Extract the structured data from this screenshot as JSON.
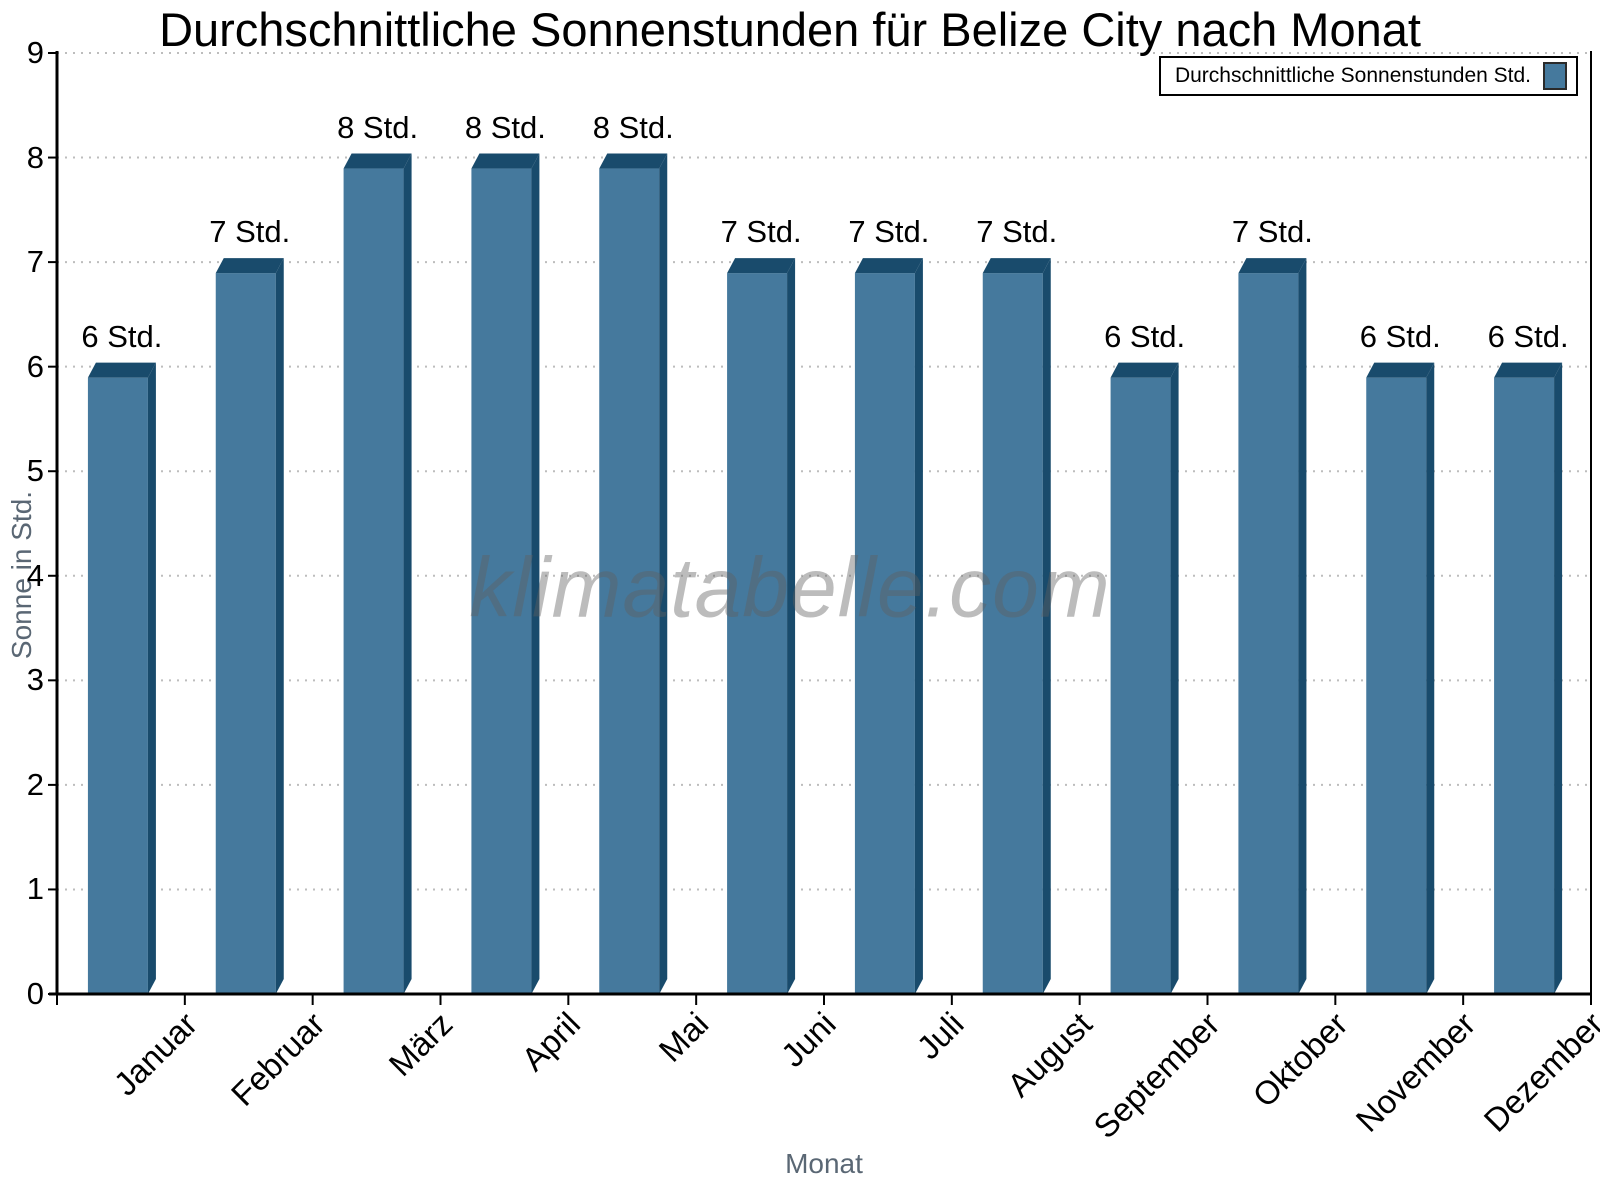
{
  "title": "Durchschnittliche Sonnenstunden für Belize City nach Monat",
  "watermark": "klimatabelle.com",
  "legend": {
    "label": "Durchschnittliche Sonnenstunden Std."
  },
  "chart_data": {
    "type": "bar",
    "title": "Durchschnittliche Sonnenstunden für Belize City nach Monat",
    "xlabel": "Monat",
    "ylabel": "Sonne in Std.",
    "categories": [
      "Januar",
      "Februar",
      "März",
      "April",
      "Mai",
      "Juni",
      "Juli",
      "August",
      "September",
      "Oktober",
      "November",
      "Dezember"
    ],
    "values": [
      6,
      7,
      8,
      8,
      8,
      7,
      7,
      7,
      6,
      7,
      6,
      6
    ],
    "value_labels": [
      "6 Std.",
      "7 Std.",
      "8 Std.",
      "8 Std.",
      "8 Std.",
      "7 Std.",
      "7 Std.",
      "7 Std.",
      "6 Std.",
      "7 Std.",
      "6 Std.",
      "6 Std."
    ],
    "unit": "Std.",
    "ylim": [
      0,
      9
    ],
    "yticks": [
      0,
      1,
      2,
      3,
      4,
      5,
      6,
      7,
      8,
      9
    ],
    "grid": "horizontal-dotted",
    "legend_position": "top-right",
    "legend_label": "Durchschnittliche Sonnenstunden Std."
  },
  "colors": {
    "bar_face": "#45799d",
    "bar_edge_dark": "#194b6c",
    "axis": "#000000",
    "grid": "#bdbdbd",
    "axis_title_text": "#5a6774",
    "tick_text": "#000000",
    "background": "#ffffff"
  }
}
